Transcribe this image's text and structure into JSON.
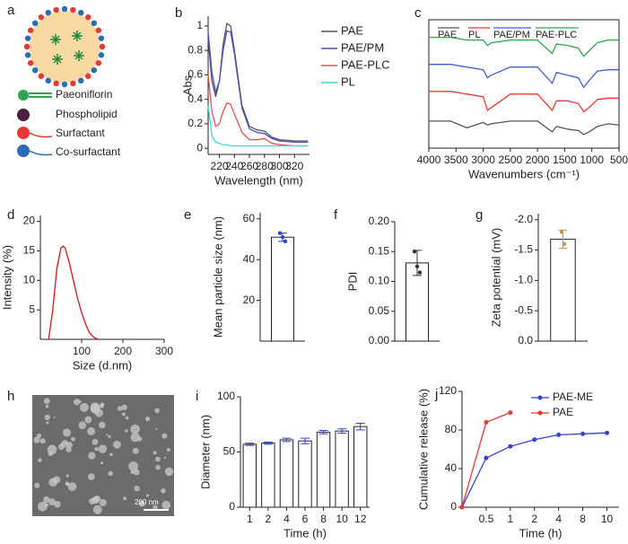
{
  "schematic": {
    "panel": "a",
    "legend": [
      "Paeoniflorin",
      "Phospholipid",
      "Surfactant",
      "Co-surfactant"
    ]
  },
  "micrograph": {
    "panel": "h",
    "scale_bar": "200 nm"
  },
  "chart_data": [
    {
      "type": "line",
      "panel": "b",
      "x_label": "Wavelength (nm)",
      "y_label": "Abs",
      "legend": "right",
      "x": [
        205,
        210,
        215,
        220,
        225,
        230,
        235,
        240,
        250,
        260,
        270,
        280,
        290,
        300,
        320,
        338
      ],
      "xlim": [
        205,
        340
      ],
      "xticks": [
        220,
        240,
        260,
        280,
        300,
        320
      ],
      "ylim": [
        -0.05,
        1.08
      ],
      "yticks": [
        0,
        0.2,
        0.4,
        0.6,
        0.8,
        1
      ],
      "series": [
        {
          "name": "PAE",
          "color": "#555555",
          "values": [
            0.9,
            0.55,
            0.42,
            0.55,
            0.85,
            1.02,
            1.0,
            0.8,
            0.35,
            0.18,
            0.15,
            0.14,
            0.09,
            0.07,
            0.06,
            0.06
          ]
        },
        {
          "name": "PAE/PM",
          "color": "#4b4fc4",
          "values": [
            0.95,
            0.62,
            0.46,
            0.55,
            0.8,
            0.96,
            0.95,
            0.77,
            0.33,
            0.16,
            0.13,
            0.12,
            0.08,
            0.06,
            0.05,
            0.05
          ]
        },
        {
          "name": "PAE-PLC",
          "color": "#e8504f",
          "values": [
            0.6,
            0.3,
            0.18,
            0.2,
            0.3,
            0.37,
            0.36,
            0.28,
            0.13,
            0.07,
            0.07,
            0.08,
            0.04,
            0.03,
            0.02,
            0.02
          ]
        },
        {
          "name": "PL",
          "color": "#38d9d9",
          "values": [
            0.35,
            0.1,
            0.05,
            0.04,
            0.03,
            0.03,
            0.02,
            0.02,
            0.02,
            0.02,
            0.02,
            0.02,
            0.02,
            0.02,
            0.02,
            0.02
          ]
        }
      ]
    },
    {
      "type": "line",
      "panel": "c",
      "x_label": "Wavenumbers (cm⁻¹)",
      "legend": "top",
      "frame": true,
      "x": [
        4000,
        3600,
        3300,
        3000,
        2920,
        2850,
        2500,
        2000,
        1730,
        1650,
        1450,
        1250,
        1150,
        1050,
        900,
        700,
        500
      ],
      "xlim": [
        4000,
        500
      ],
      "xticks": [
        4000,
        3500,
        3000,
        2500,
        2000,
        1500,
        1000,
        500
      ],
      "ylim": [
        0,
        95
      ],
      "series": [
        {
          "name": "PAE",
          "color": "#555555",
          "values": [
            20,
            20,
            15,
            19,
            17,
            18,
            20,
            20,
            12,
            16,
            14,
            13,
            10,
            12,
            16,
            18,
            17
          ]
        },
        {
          "name": "PL",
          "color": "#e53935",
          "values": [
            42,
            42,
            40,
            38,
            28,
            30,
            40,
            40,
            28,
            35,
            35,
            33,
            27,
            30,
            36,
            37,
            37
          ]
        },
        {
          "name": "PAE/PM",
          "color": "#3f5fd6",
          "values": [
            62,
            62,
            60,
            58,
            52,
            54,
            60,
            60,
            48,
            56,
            54,
            52,
            45,
            50,
            57,
            58,
            58
          ]
        },
        {
          "name": "PAE-PLC",
          "color": "#2ea44f",
          "values": [
            82,
            82,
            80,
            80,
            76,
            78,
            80,
            80,
            70,
            77,
            76,
            74,
            68,
            72,
            78,
            80,
            80
          ]
        }
      ]
    },
    {
      "type": "line",
      "panel": "d",
      "x_label": "Size (d.nm)",
      "y_label": "Intensity (%)",
      "x": [
        20,
        30,
        40,
        50,
        55,
        60,
        70,
        80,
        90,
        100,
        110,
        120,
        130,
        140
      ],
      "xlim": [
        0,
        300
      ],
      "xticks": [
        100,
        200,
        300
      ],
      "ylim": [
        0,
        21
      ],
      "yticks": [
        5,
        10,
        15,
        20
      ],
      "series": [
        {
          "color": "#dd1111",
          "values": [
            0,
            5,
            12,
            15.5,
            15.8,
            15.5,
            13,
            10,
            7,
            4.5,
            2.5,
            1,
            0.3,
            0
          ]
        }
      ]
    },
    {
      "type": "bar",
      "panel": "e",
      "y_label": "Mean particle size (nm)",
      "ylim": [
        0,
        63
      ],
      "yticks": [
        20,
        40,
        60
      ],
      "values": [
        51
      ],
      "errors": [
        2
      ],
      "points": [
        53,
        51,
        49
      ],
      "color": "#3344cc"
    },
    {
      "type": "bar",
      "panel": "f",
      "y_label": "PDI",
      "ylim": [
        0,
        0.2
      ],
      "yticks": [
        {
          "value": 0,
          "label": "0.00"
        },
        {
          "value": 0.05,
          "label": "0.05"
        },
        {
          "value": 0.1,
          "label": "0.10"
        },
        {
          "value": 0.15,
          "label": "0.15"
        },
        {
          "value": 0.2,
          "label": "0.20"
        }
      ],
      "values": [
        0.131
      ],
      "errors": [
        0.021
      ],
      "points": [
        0.15,
        0.125,
        0.115
      ],
      "color": "#333333"
    },
    {
      "type": "bar",
      "panel": "g",
      "y_label": "Zeta potential (mV)",
      "ylim": [
        0,
        -2.1
      ],
      "yticks": [
        {
          "value": -2,
          "label": "-2.0"
        },
        {
          "value": -1.5,
          "label": "-1.5"
        },
        {
          "value": -1,
          "label": "-1.0"
        },
        {
          "value": -0.5,
          "label": "-0.5"
        },
        {
          "value": 0,
          "label": "0.0"
        }
      ],
      "values": [
        -1.68
      ],
      "errors": [
        0.15
      ],
      "points": [
        -1.8,
        -1.6
      ],
      "color": "#c8954a"
    },
    {
      "type": "bar",
      "panel": "i",
      "x_label": "Time (h)",
      "y_label": "Diameter (nm)",
      "categories": [
        "1",
        "2",
        "4",
        "6",
        "8",
        "10",
        "12"
      ],
      "values": [
        57,
        58,
        61,
        60,
        68,
        69,
        73
      ],
      "errors": [
        1,
        1,
        1.5,
        2.5,
        1.5,
        2,
        3
      ],
      "ylim": [
        0,
        100
      ],
      "yticks": [
        0,
        50,
        100
      ],
      "color": "#3344cc"
    },
    {
      "type": "line",
      "panel": "j",
      "x_label": "Time (h)",
      "y_label": "Cumulative release (%)",
      "legend": "top-right",
      "categories": [
        null,
        "0.5",
        "1",
        "2",
        "4",
        "8",
        "10"
      ],
      "ylim": [
        0,
        120
      ],
      "yticks": [
        0,
        40,
        80,
        120
      ],
      "series": [
        {
          "name": "PAE-ME",
          "color": "#3344cc",
          "values": [
            0,
            51,
            63,
            70,
            75,
            76,
            77
          ]
        },
        {
          "name": "PAE",
          "color": "#e53935",
          "values": [
            0,
            88,
            98,
            null,
            null,
            null,
            null
          ]
        }
      ]
    }
  ]
}
